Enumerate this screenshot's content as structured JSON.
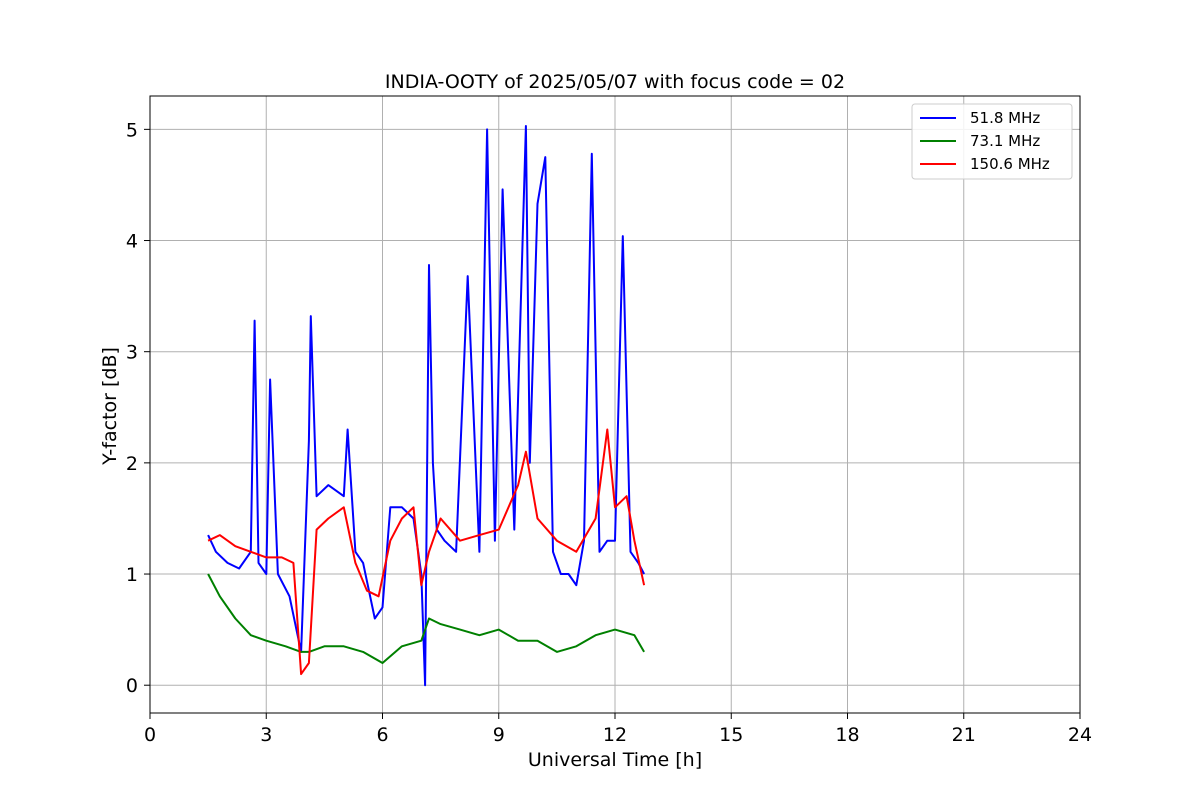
{
  "chart_data": {
    "type": "line",
    "title": "INDIA-OOTY of 2025/05/07 with focus code = 02",
    "xlabel": "Universal Time [h]",
    "ylabel": "Y-factor [dB]",
    "xlim": [
      0,
      24
    ],
    "ylim": [
      -0.25,
      5.3
    ],
    "xticks": [
      0,
      3,
      6,
      9,
      12,
      15,
      18,
      21,
      24
    ],
    "yticks": [
      0,
      1,
      2,
      3,
      4,
      5
    ],
    "grid": true,
    "legend": "top-right",
    "series": [
      {
        "name": "51.8 MHz",
        "color": "#0000ff",
        "x": [
          1.5,
          1.7,
          2.0,
          2.3,
          2.6,
          2.7,
          2.8,
          3.0,
          3.1,
          3.3,
          3.6,
          3.9,
          4.1,
          4.15,
          4.3,
          4.6,
          5.0,
          5.1,
          5.3,
          5.5,
          5.8,
          6.0,
          6.2,
          6.5,
          6.8,
          7.0,
          7.1,
          7.2,
          7.3,
          7.4,
          7.6,
          7.9,
          8.2,
          8.5,
          8.7,
          8.9,
          9.1,
          9.4,
          9.7,
          9.8,
          10.0,
          10.2,
          10.4,
          10.6,
          10.8,
          11.0,
          11.2,
          11.4,
          11.6,
          11.8,
          12.0,
          12.2,
          12.4,
          12.6,
          12.75
        ],
        "y": [
          1.35,
          1.2,
          1.1,
          1.05,
          1.2,
          3.28,
          1.1,
          1.0,
          2.75,
          1.0,
          0.8,
          0.3,
          2.2,
          3.32,
          1.7,
          1.8,
          1.7,
          2.3,
          1.2,
          1.1,
          0.6,
          0.7,
          1.6,
          1.6,
          1.5,
          1.0,
          0.0,
          3.78,
          2.0,
          1.4,
          1.3,
          1.2,
          3.68,
          1.2,
          5.0,
          1.3,
          4.46,
          1.4,
          5.03,
          2.0,
          4.33,
          4.75,
          1.2,
          1.0,
          1.0,
          0.9,
          1.3,
          4.78,
          1.2,
          1.3,
          1.3,
          4.04,
          1.2,
          1.1,
          1.0
        ]
      },
      {
        "name": "73.1 MHz",
        "color": "#008000",
        "x": [
          1.5,
          1.8,
          2.2,
          2.6,
          3.0,
          3.5,
          3.9,
          4.1,
          4.5,
          5.0,
          5.5,
          6.0,
          6.5,
          7.0,
          7.2,
          7.5,
          8.0,
          8.5,
          9.0,
          9.5,
          10.0,
          10.5,
          11.0,
          11.5,
          12.0,
          12.5,
          12.75
        ],
        "y": [
          1.0,
          0.8,
          0.6,
          0.45,
          0.4,
          0.35,
          0.3,
          0.3,
          0.35,
          0.35,
          0.3,
          0.2,
          0.35,
          0.4,
          0.6,
          0.55,
          0.5,
          0.45,
          0.5,
          0.4,
          0.4,
          0.3,
          0.35,
          0.45,
          0.5,
          0.45,
          0.3
        ]
      },
      {
        "name": "150.6 MHz",
        "color": "#ff0000",
        "x": [
          1.5,
          1.8,
          2.2,
          2.6,
          3.0,
          3.4,
          3.7,
          3.9,
          4.1,
          4.3,
          4.6,
          5.0,
          5.3,
          5.6,
          5.9,
          6.2,
          6.5,
          6.8,
          7.0,
          7.2,
          7.5,
          8.0,
          8.5,
          9.0,
          9.5,
          9.7,
          10.0,
          10.5,
          11.0,
          11.5,
          11.8,
          12.0,
          12.3,
          12.5,
          12.75
        ],
        "y": [
          1.3,
          1.35,
          1.25,
          1.2,
          1.15,
          1.15,
          1.1,
          0.1,
          0.2,
          1.4,
          1.5,
          1.6,
          1.1,
          0.85,
          0.8,
          1.3,
          1.5,
          1.6,
          0.9,
          1.2,
          1.5,
          1.3,
          1.35,
          1.4,
          1.8,
          2.1,
          1.5,
          1.3,
          1.2,
          1.5,
          2.3,
          1.6,
          1.7,
          1.3,
          0.9
        ]
      }
    ]
  }
}
